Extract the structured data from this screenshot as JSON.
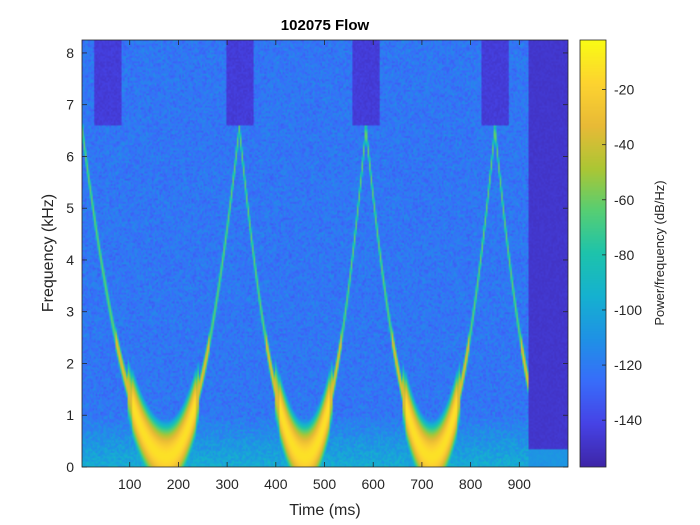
{
  "chart_data": {
    "type": "heatmap",
    "title": "102075 Flow",
    "xlabel": "Time (ms)",
    "ylabel": "Frequency (kHz)",
    "colorbar_label": "Power/frequency (dB/Hz)",
    "xlim": [
      2,
      1000
    ],
    "ylim": [
      0,
      8.25
    ],
    "clim": [
      -157,
      -2
    ],
    "xticks": [
      100,
      200,
      300,
      400,
      500,
      600,
      700,
      800,
      900
    ],
    "yticks": [
      0,
      1,
      2,
      3,
      4,
      5,
      6,
      7,
      8
    ],
    "cticks": [
      -20,
      -40,
      -60,
      -80,
      -100,
      -120,
      -140
    ],
    "colormap": "parula",
    "signal_end_ms": 920,
    "chirps": [
      {
        "start_ms": 2,
        "min_ms": 175,
        "end_ms": 325
      },
      {
        "start_ms": 325,
        "min_ms": 460,
        "end_ms": 585
      },
      {
        "start_ms": 585,
        "min_ms": 720,
        "end_ms": 850
      },
      {
        "start_ms": 850,
        "min_ms": 980,
        "end_ms": 1100
      }
    ],
    "chirp_peak_khz": 6.55,
    "colors": {
      "axis": "#262626",
      "frame": "#262626"
    }
  }
}
